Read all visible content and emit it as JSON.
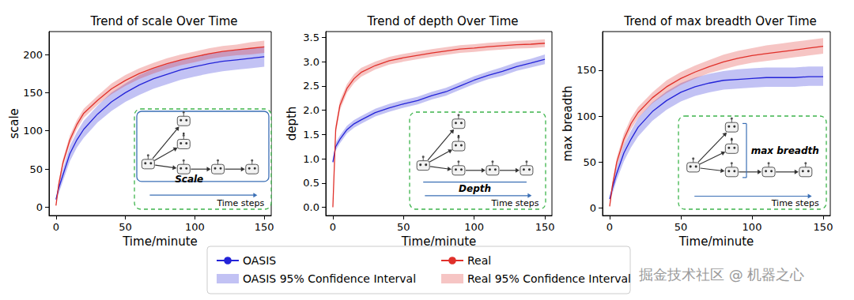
{
  "chart_data": [
    {
      "type": "line",
      "title": "Trend of scale Over Time",
      "x_label": "Time/minute",
      "y_label": "scale",
      "x": [
        0,
        2,
        5,
        10,
        15,
        20,
        30,
        40,
        50,
        60,
        70,
        80,
        90,
        100,
        110,
        120,
        130,
        140,
        150
      ],
      "xlim": [
        -5,
        155
      ],
      "xticks": [
        0,
        50,
        100,
        150
      ],
      "ylim": [
        -11,
        230
      ],
      "yticks": [
        0,
        50,
        100,
        150,
        200
      ],
      "grid": false,
      "legend": "bottom",
      "annotations": [
        "Scale",
        "Time steps"
      ],
      "series": [
        {
          "name": "OASIS",
          "color": "#2323d8",
          "ci_name": "OASIS 95% Confidence Interval",
          "values": [
            10,
            25,
            42,
            70,
            88,
            102,
            122,
            138,
            150,
            160,
            168,
            174,
            180,
            184,
            188,
            191,
            193,
            195,
            197
          ],
          "ci_lower": [
            8,
            18,
            34,
            60,
            78,
            91,
            111,
            126,
            138,
            147,
            155,
            161,
            167,
            171,
            175,
            178,
            180,
            182,
            184
          ],
          "ci_upper": [
            12,
            32,
            50,
            80,
            98,
            113,
            133,
            150,
            162,
            173,
            181,
            187,
            193,
            197,
            201,
            204,
            206,
            208,
            210
          ]
        },
        {
          "name": "Real",
          "color": "#e0302a",
          "ci_name": "Real 95% Confidence Interval",
          "values": [
            2,
            30,
            58,
            88,
            108,
            123,
            140,
            155,
            166,
            175,
            182,
            188,
            193,
            197,
            201,
            204,
            206,
            208,
            210
          ],
          "ci_lower": [
            1,
            26,
            53,
            82,
            102,
            117,
            134,
            148,
            159,
            168,
            175,
            181,
            186,
            190,
            194,
            197,
            199,
            200,
            202
          ],
          "ci_upper": [
            3,
            34,
            63,
            94,
            114,
            129,
            146,
            162,
            173,
            182,
            189,
            195,
            200,
            204,
            208,
            211,
            213,
            216,
            218
          ]
        }
      ]
    },
    {
      "type": "line",
      "title": "Trend of depth Over Time",
      "x_label": "Time/minute",
      "y_label": "depth",
      "x": [
        0,
        2,
        5,
        10,
        15,
        20,
        30,
        40,
        50,
        60,
        70,
        80,
        90,
        100,
        110,
        120,
        130,
        140,
        150
      ],
      "xlim": [
        -5,
        155
      ],
      "xticks": [
        0,
        50,
        100,
        150
      ],
      "ylim": [
        -0.17,
        3.62
      ],
      "yticks": [
        {
          "value": 0,
          "label": "0.0"
        },
        0.5,
        {
          "value": 1,
          "label": "1.0"
        },
        1.5,
        {
          "value": 2,
          "label": "2.0"
        },
        2.5,
        {
          "value": 3,
          "label": "3.0"
        },
        3.5
      ],
      "grid": false,
      "legend": "bottom",
      "annotations": [
        "Depth",
        "Time steps"
      ],
      "series": [
        {
          "name": "OASIS",
          "color": "#2323d8",
          "ci_name": "OASIS 95% Confidence Interval",
          "values": [
            0.93,
            1.25,
            1.4,
            1.6,
            1.72,
            1.8,
            1.95,
            2.05,
            2.13,
            2.2,
            2.3,
            2.38,
            2.5,
            2.62,
            2.72,
            2.8,
            2.9,
            2.97,
            3.05
          ],
          "ci_lower": [
            0.9,
            1.17,
            1.32,
            1.52,
            1.64,
            1.72,
            1.87,
            1.97,
            2.05,
            2.12,
            2.22,
            2.3,
            2.42,
            2.54,
            2.64,
            2.71,
            2.81,
            2.88,
            2.95
          ],
          "ci_upper": [
            0.96,
            1.33,
            1.48,
            1.68,
            1.8,
            1.88,
            2.03,
            2.13,
            2.21,
            2.28,
            2.38,
            2.46,
            2.58,
            2.7,
            2.8,
            2.89,
            2.99,
            3.06,
            3.15
          ]
        },
        {
          "name": "Real",
          "color": "#e0302a",
          "ci_name": "Real 95% Confidence Interval",
          "values": [
            0,
            1.6,
            2.1,
            2.45,
            2.65,
            2.78,
            2.92,
            3.02,
            3.08,
            3.13,
            3.18,
            3.22,
            3.26,
            3.28,
            3.31,
            3.33,
            3.35,
            3.36,
            3.38
          ],
          "ci_lower": [
            0,
            1.5,
            2.0,
            2.36,
            2.56,
            2.69,
            2.84,
            2.94,
            3.0,
            3.05,
            3.1,
            3.14,
            3.18,
            3.2,
            3.23,
            3.25,
            3.27,
            3.28,
            3.3
          ],
          "ci_upper": [
            0,
            1.7,
            2.2,
            2.54,
            2.74,
            2.87,
            3.0,
            3.1,
            3.16,
            3.21,
            3.26,
            3.3,
            3.34,
            3.36,
            3.39,
            3.41,
            3.43,
            3.44,
            3.46
          ]
        }
      ]
    },
    {
      "type": "line",
      "title": "Trend of max breadth Over Time",
      "x_label": "Time/minute",
      "y_label": "max breadth",
      "x": [
        0,
        2,
        5,
        10,
        15,
        20,
        30,
        40,
        50,
        60,
        70,
        80,
        90,
        100,
        110,
        120,
        130,
        140,
        150
      ],
      "xlim": [
        -5,
        155
      ],
      "xticks": [
        0,
        50,
        100,
        150
      ],
      "ylim": [
        -8,
        192
      ],
      "yticks": [
        0,
        50,
        100,
        150
      ],
      "grid": false,
      "legend": "bottom",
      "annotations": [
        "max breadth",
        "Time steps"
      ],
      "series": [
        {
          "name": "OASIS",
          "color": "#2323d8",
          "ci_name": "OASIS 95% Confidence Interval",
          "values": [
            10,
            22,
            38,
            60,
            75,
            88,
            105,
            117,
            126,
            132,
            136,
            139,
            140,
            141,
            142,
            142,
            142,
            143,
            143
          ],
          "ci_lower": [
            8,
            16,
            31,
            51,
            66,
            78,
            95,
            107,
            116,
            122,
            126,
            129,
            130,
            131,
            132,
            132,
            132,
            133,
            133
          ],
          "ci_upper": [
            12,
            28,
            45,
            69,
            84,
            98,
            115,
            127,
            136,
            142,
            146,
            149,
            151,
            152,
            153,
            153,
            153,
            154,
            154
          ]
        },
        {
          "name": "Real",
          "color": "#e0302a",
          "ci_name": "Real 95% Confidence Interval",
          "values": [
            2,
            25,
            50,
            75,
            92,
            104,
            120,
            132,
            141,
            148,
            154,
            159,
            163,
            166,
            168,
            170,
            172,
            174,
            176
          ],
          "ci_lower": [
            1,
            21,
            45,
            69,
            86,
            98,
            114,
            125,
            134,
            141,
            147,
            151,
            155,
            158,
            160,
            162,
            164,
            166,
            168
          ],
          "ci_upper": [
            3,
            29,
            55,
            81,
            98,
            110,
            126,
            139,
            148,
            155,
            161,
            167,
            171,
            174,
            177,
            179,
            181,
            183,
            185
          ]
        }
      ]
    }
  ],
  "watermark": "掘金技术社区 @ 机器之心"
}
